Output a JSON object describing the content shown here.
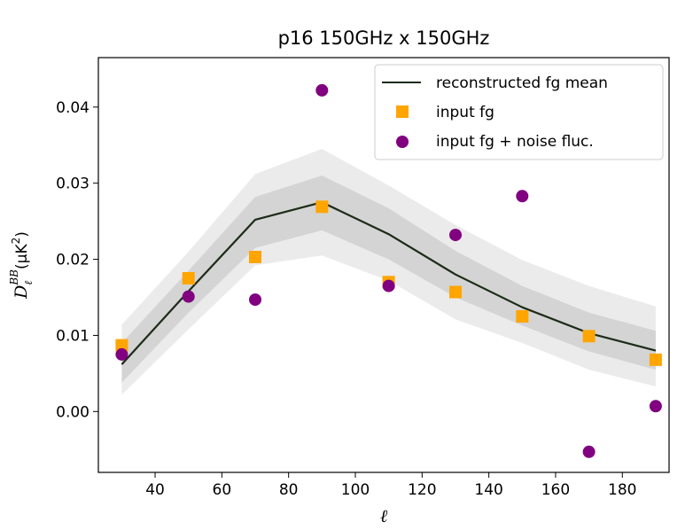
{
  "chart_data": {
    "type": "line",
    "title": "p16 150GHz x 150GHz",
    "xlabel": "ℓ",
    "ylabel": {
      "main": "D",
      "sub": "ℓ",
      "sup": "BB",
      "unit_open": "(μK",
      "unit_sup": "2",
      "unit_close": ")"
    },
    "xlim": [
      23,
      194
    ],
    "ylim": [
      -0.008,
      0.0465
    ],
    "xticks": [
      40,
      60,
      80,
      100,
      120,
      140,
      160,
      180
    ],
    "yticks": [
      0.0,
      0.01,
      0.02,
      0.03,
      0.04
    ],
    "ytick_labels": [
      "0.00",
      "0.01",
      "0.02",
      "0.03",
      "0.04"
    ],
    "x": [
      30,
      50,
      70,
      90,
      110,
      130,
      150,
      170,
      190
    ],
    "series": [
      {
        "name": "reconstructed fg mean",
        "kind": "line",
        "color": "#1c2b17",
        "values": [
          0.0062,
          0.0158,
          0.0252,
          0.0275,
          0.0233,
          0.018,
          0.0137,
          0.0103,
          0.008
        ]
      },
      {
        "name": "input fg",
        "kind": "square",
        "color": "#ffa500",
        "values": [
          0.0087,
          0.0175,
          0.0203,
          0.0269,
          0.017,
          0.0157,
          0.0125,
          0.0099,
          0.0068
        ]
      },
      {
        "name": "input fg + noise fluc.",
        "kind": "circle",
        "color": "#800080",
        "values": [
          0.0075,
          0.0151,
          0.0147,
          0.0422,
          0.0165,
          0.0232,
          0.0283,
          -0.0053,
          0.0007
        ]
      }
    ],
    "bands": [
      {
        "level": "outer",
        "color": "#ebebeb",
        "lower": [
          0.0022,
          0.0108,
          0.0192,
          0.0205,
          0.0172,
          0.0121,
          0.009,
          0.0055,
          0.0033
        ],
        "upper": [
          0.0114,
          0.021,
          0.0312,
          0.0345,
          0.0297,
          0.0245,
          0.0199,
          0.0165,
          0.0138
        ]
      },
      {
        "level": "inner",
        "color": "#d4d4d4",
        "lower": [
          0.0038,
          0.013,
          0.0215,
          0.0238,
          0.02,
          0.015,
          0.0113,
          0.0079,
          0.0055
        ],
        "upper": [
          0.009,
          0.0185,
          0.0282,
          0.031,
          0.0267,
          0.0211,
          0.0165,
          0.013,
          0.0106
        ]
      }
    ],
    "grid": false,
    "legend_position": "top-right"
  }
}
